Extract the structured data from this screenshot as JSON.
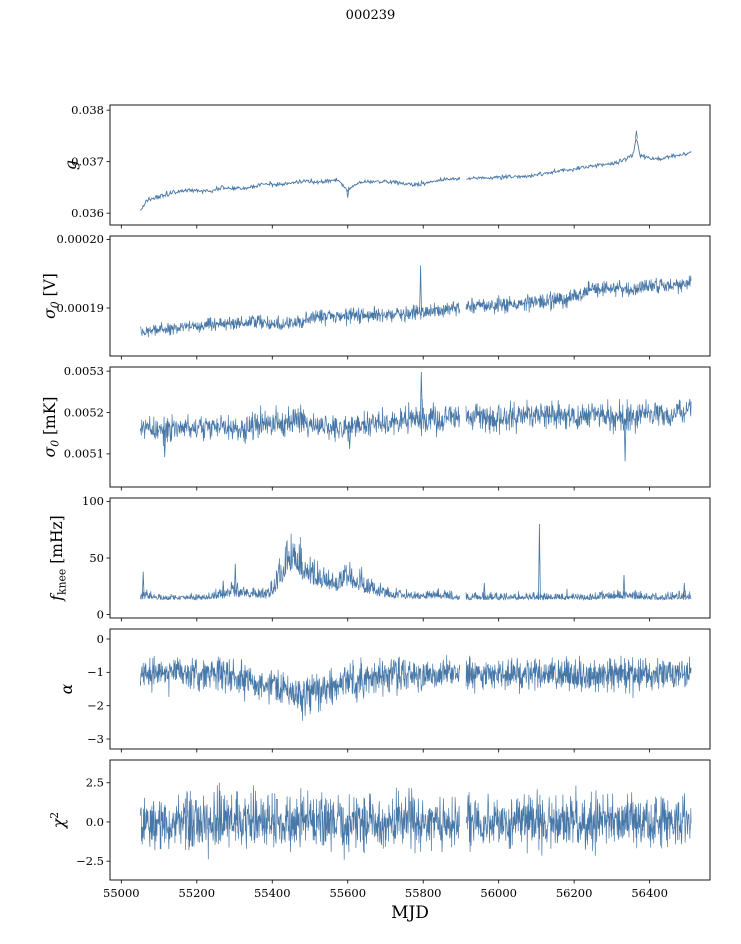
{
  "chart_data": {
    "type": "line",
    "title": "000239",
    "xlabel": "MJD",
    "line_color": "#4878a8",
    "xlim": [
      54970,
      56560
    ],
    "x_data_range": [
      55050,
      56510
    ],
    "xticks": [
      {
        "v": 55000,
        "label": "55000"
      },
      {
        "v": 55200,
        "label": "55200"
      },
      {
        "v": 55400,
        "label": "55400"
      },
      {
        "v": 55600,
        "label": "55600"
      },
      {
        "v": 55800,
        "label": "55800"
      },
      {
        "v": 56000,
        "label": "56000"
      },
      {
        "v": 56200,
        "label": "56200"
      },
      {
        "v": 56400,
        "label": "56400"
      }
    ],
    "gaps": [
      [
        55897,
        55913
      ]
    ],
    "panels": [
      {
        "name": "g",
        "ylabel": [
          {
            "t": "g",
            "i": 1
          }
        ],
        "ylim": [
          0.03577,
          0.0381
        ],
        "yticks": [
          {
            "v": 0.036,
            "label": "0.036"
          },
          {
            "v": 0.037,
            "label": "0.037"
          },
          {
            "v": 0.038,
            "label": "0.038"
          }
        ],
        "style": "line",
        "envelope": [
          [
            55050,
            0.03605,
            3e-05
          ],
          [
            55070,
            0.03625,
            6e-05
          ],
          [
            55120,
            0.03638,
            7e-05
          ],
          [
            55180,
            0.03645,
            5e-05
          ],
          [
            55230,
            0.03642,
            5e-05
          ],
          [
            55280,
            0.0365,
            6e-05
          ],
          [
            55330,
            0.03648,
            5e-05
          ],
          [
            55380,
            0.03658,
            6e-05
          ],
          [
            55430,
            0.03655,
            5e-05
          ],
          [
            55480,
            0.03662,
            5e-05
          ],
          [
            55530,
            0.0366,
            5e-05
          ],
          [
            55570,
            0.03665,
            4e-05
          ],
          [
            55600,
            0.03645,
            5e-05
          ],
          [
            55630,
            0.0366,
            4e-05
          ],
          [
            55700,
            0.03662,
            5e-05
          ],
          [
            55780,
            0.03655,
            5e-05
          ],
          [
            55850,
            0.03665,
            4e-05
          ],
          [
            55920,
            0.03668,
            4e-05
          ],
          [
            56000,
            0.0367,
            5e-05
          ],
          [
            56080,
            0.03672,
            5e-05
          ],
          [
            56150,
            0.0368,
            5e-05
          ],
          [
            56220,
            0.03688,
            5e-05
          ],
          [
            56280,
            0.03695,
            5e-05
          ],
          [
            56320,
            0.037,
            6e-05
          ],
          [
            56355,
            0.03712,
            6e-05
          ],
          [
            56365,
            0.03745,
            4e-05
          ],
          [
            56375,
            0.0371,
            5e-05
          ],
          [
            56420,
            0.03705,
            4e-05
          ],
          [
            56470,
            0.03712,
            4e-05
          ],
          [
            56510,
            0.03718,
            3e-05
          ]
        ],
        "spikes": [
          [
            56365,
            0.0376
          ],
          [
            55600,
            0.0363
          ]
        ]
      },
      {
        "name": "sigma0-V",
        "ylabel": [
          {
            "t": "σ",
            "i": 1
          },
          {
            "t": "0",
            "sub": 1,
            "i": 1
          },
          {
            "t": " [V]"
          }
        ],
        "ylim": [
          0.000183,
          0.0002005
        ],
        "yticks": [
          {
            "v": 0.00019,
            "label": "0.00019"
          },
          {
            "v": 0.0002,
            "label": "0.00020"
          }
        ],
        "style": "band",
        "envelope": [
          [
            55050,
            0.0001865,
            7e-07
          ],
          [
            55150,
            0.0001871,
            7e-07
          ],
          [
            55250,
            0.0001877,
            7e-07
          ],
          [
            55350,
            0.000188,
            8e-07
          ],
          [
            55430,
            0.0001876,
            8e-07
          ],
          [
            55520,
            0.0001886,
            8e-07
          ],
          [
            55620,
            0.000189,
            8e-07
          ],
          [
            55700,
            0.0001889,
            8e-07
          ],
          [
            55790,
            0.0001893,
            9e-07
          ],
          [
            55850,
            0.0001897,
            8e-07
          ],
          [
            55905,
            0.0001902,
            8e-07
          ],
          [
            56000,
            0.0001904,
            9e-07
          ],
          [
            56100,
            0.0001908,
            9e-07
          ],
          [
            56180,
            0.0001913,
            9e-07
          ],
          [
            56240,
            0.0001926,
            9e-07
          ],
          [
            56300,
            0.0001931,
            9e-07
          ],
          [
            56345,
            0.0001924,
            9e-07
          ],
          [
            56400,
            0.0001933,
            8e-07
          ],
          [
            56460,
            0.0001933,
            8e-07
          ],
          [
            56510,
            0.0001937,
            7e-07
          ]
        ],
        "spikes": [
          [
            55793,
            0.0001962
          ]
        ]
      },
      {
        "name": "sigma0-mK",
        "ylabel": [
          {
            "t": "σ",
            "i": 1
          },
          {
            "t": "0",
            "sub": 1,
            "i": 1
          },
          {
            "t": " [mK]"
          }
        ],
        "ylim": [
          0.00502,
          0.00531
        ],
        "yticks": [
          {
            "v": 0.0051,
            "label": "0.0051"
          },
          {
            "v": 0.0052,
            "label": "0.0052"
          },
          {
            "v": 0.0053,
            "label": "0.0053"
          }
        ],
        "style": "band",
        "envelope": [
          [
            55050,
            0.005165,
            1.8e-05
          ],
          [
            55110,
            0.005155,
            2.5e-05
          ],
          [
            55170,
            0.005165,
            1.8e-05
          ],
          [
            55250,
            0.00516,
            2e-05
          ],
          [
            55320,
            0.005165,
            2.2e-05
          ],
          [
            55400,
            0.005175,
            2.5e-05
          ],
          [
            55450,
            0.00518,
            2.8e-05
          ],
          [
            55520,
            0.005165,
            2.2e-05
          ],
          [
            55600,
            0.005155,
            2.5e-05
          ],
          [
            55650,
            0.00518,
            2.5e-05
          ],
          [
            55720,
            0.005175,
            2.2e-05
          ],
          [
            55790,
            0.00519,
            3e-05
          ],
          [
            55850,
            0.005185,
            2.5e-05
          ],
          [
            55905,
            0.00519,
            2.2e-05
          ],
          [
            56000,
            0.005185,
            2.5e-05
          ],
          [
            56100,
            0.005195,
            2.5e-05
          ],
          [
            56200,
            0.00519,
            2.5e-05
          ],
          [
            56280,
            0.005195,
            2.5e-05
          ],
          [
            56330,
            0.00518,
            3e-05
          ],
          [
            56400,
            0.0052,
            2.2e-05
          ],
          [
            56460,
            0.005195,
            2.2e-05
          ],
          [
            56510,
            0.005205,
            2e-05
          ]
        ],
        "spikes": [
          [
            55795,
            0.005298
          ],
          [
            55115,
            0.005092
          ],
          [
            56335,
            0.005082
          ],
          [
            55605,
            0.005112
          ]
        ]
      },
      {
        "name": "fknee",
        "ylabel": [
          {
            "t": "f",
            "i": 1
          },
          {
            "t": "knee",
            "sub": 1
          },
          {
            "t": " [mHz]"
          }
        ],
        "ylim": [
          -3,
          103
        ],
        "yticks": [
          {
            "v": 0,
            "label": "0"
          },
          {
            "v": 50,
            "label": "50"
          },
          {
            "v": 100,
            "label": "100"
          }
        ],
        "style": "spiky_up",
        "envelope": [
          [
            55050,
            13,
            5
          ],
          [
            55060,
            14,
            8
          ],
          [
            55100,
            13,
            4
          ],
          [
            55200,
            13,
            4
          ],
          [
            55260,
            14,
            6
          ],
          [
            55300,
            16,
            10
          ],
          [
            55340,
            15,
            8
          ],
          [
            55390,
            14,
            6
          ],
          [
            55410,
            20,
            12
          ],
          [
            55440,
            35,
            25
          ],
          [
            55460,
            38,
            26
          ],
          [
            55480,
            30,
            22
          ],
          [
            55510,
            26,
            18
          ],
          [
            55540,
            22,
            14
          ],
          [
            55570,
            20,
            12
          ],
          [
            55600,
            24,
            18
          ],
          [
            55620,
            22,
            16
          ],
          [
            55650,
            18,
            12
          ],
          [
            55690,
            16,
            8
          ],
          [
            55730,
            14,
            6
          ],
          [
            55800,
            14,
            5
          ],
          [
            55860,
            14,
            5
          ],
          [
            55898,
            13,
            4
          ],
          [
            55912,
            13,
            4
          ],
          [
            55960,
            13,
            5
          ],
          [
            56050,
            13,
            4
          ],
          [
            56110,
            13,
            5
          ],
          [
            56160,
            13,
            4
          ],
          [
            56250,
            13,
            4
          ],
          [
            56330,
            14,
            6
          ],
          [
            56400,
            13,
            4
          ],
          [
            56460,
            13,
            5
          ],
          [
            56510,
            13,
            5
          ]
        ],
        "spikes": [
          [
            55058,
            38
          ],
          [
            55270,
            30
          ],
          [
            55302,
            45
          ],
          [
            55962,
            28
          ],
          [
            56108,
            80
          ],
          [
            56332,
            35
          ],
          [
            56492,
            28
          ]
        ]
      },
      {
        "name": "alpha",
        "ylabel": [
          {
            "t": "α",
            "i": 1
          }
        ],
        "ylim": [
          -3.3,
          0.3
        ],
        "yticks": [
          {
            "v": 0,
            "label": "0"
          },
          {
            "v": -1,
            "label": "−1"
          },
          {
            "v": -2,
            "label": "−2"
          },
          {
            "v": -3,
            "label": "−3"
          }
        ],
        "style": "spiky_sym",
        "envelope": [
          [
            55050,
            -1.05,
            0.33
          ],
          [
            55150,
            -1.05,
            0.35
          ],
          [
            55250,
            -1.05,
            0.35
          ],
          [
            55330,
            -1.15,
            0.4
          ],
          [
            55360,
            -1.35,
            0.4
          ],
          [
            55400,
            -1.3,
            0.4
          ],
          [
            55430,
            -1.55,
            0.42
          ],
          [
            55470,
            -1.65,
            0.42
          ],
          [
            55520,
            -1.6,
            0.42
          ],
          [
            55560,
            -1.45,
            0.4
          ],
          [
            55590,
            -1.25,
            0.4
          ],
          [
            55620,
            -1.3,
            0.42
          ],
          [
            55650,
            -1.15,
            0.4
          ],
          [
            55700,
            -1.1,
            0.38
          ],
          [
            55800,
            -1.08,
            0.36
          ],
          [
            55898,
            -1.05,
            0.35
          ],
          [
            55912,
            -1.05,
            0.35
          ],
          [
            56000,
            -1.08,
            0.36
          ],
          [
            56100,
            -1.05,
            0.35
          ],
          [
            56200,
            -1.08,
            0.36
          ],
          [
            56300,
            -1.05,
            0.35
          ],
          [
            56400,
            -1.08,
            0.36
          ],
          [
            56510,
            -1.05,
            0.33
          ]
        ],
        "spikes": []
      },
      {
        "name": "chi2",
        "ylabel": [
          {
            "t": "χ",
            "i": 1
          },
          {
            "t": "2",
            "sup": 1
          }
        ],
        "ylim": [
          -3.7,
          3.95
        ],
        "yticks": [
          {
            "v": 2.5,
            "label": "2.5"
          },
          {
            "v": 0.0,
            "label": "0.0"
          },
          {
            "v": -2.5,
            "label": "−2.5"
          }
        ],
        "style": "spiky_sym",
        "envelope": [
          [
            55050,
            0,
            1.1
          ],
          [
            55120,
            0,
            1.25
          ],
          [
            55300,
            0,
            1.3
          ],
          [
            55500,
            0,
            1.3
          ],
          [
            55700,
            0,
            1.25
          ],
          [
            55898,
            0,
            1.2
          ],
          [
            55912,
            0,
            1.2
          ],
          [
            56100,
            0,
            1.3
          ],
          [
            56300,
            0,
            1.25
          ],
          [
            56510,
            0,
            1.2
          ]
        ],
        "spikes": []
      }
    ]
  }
}
